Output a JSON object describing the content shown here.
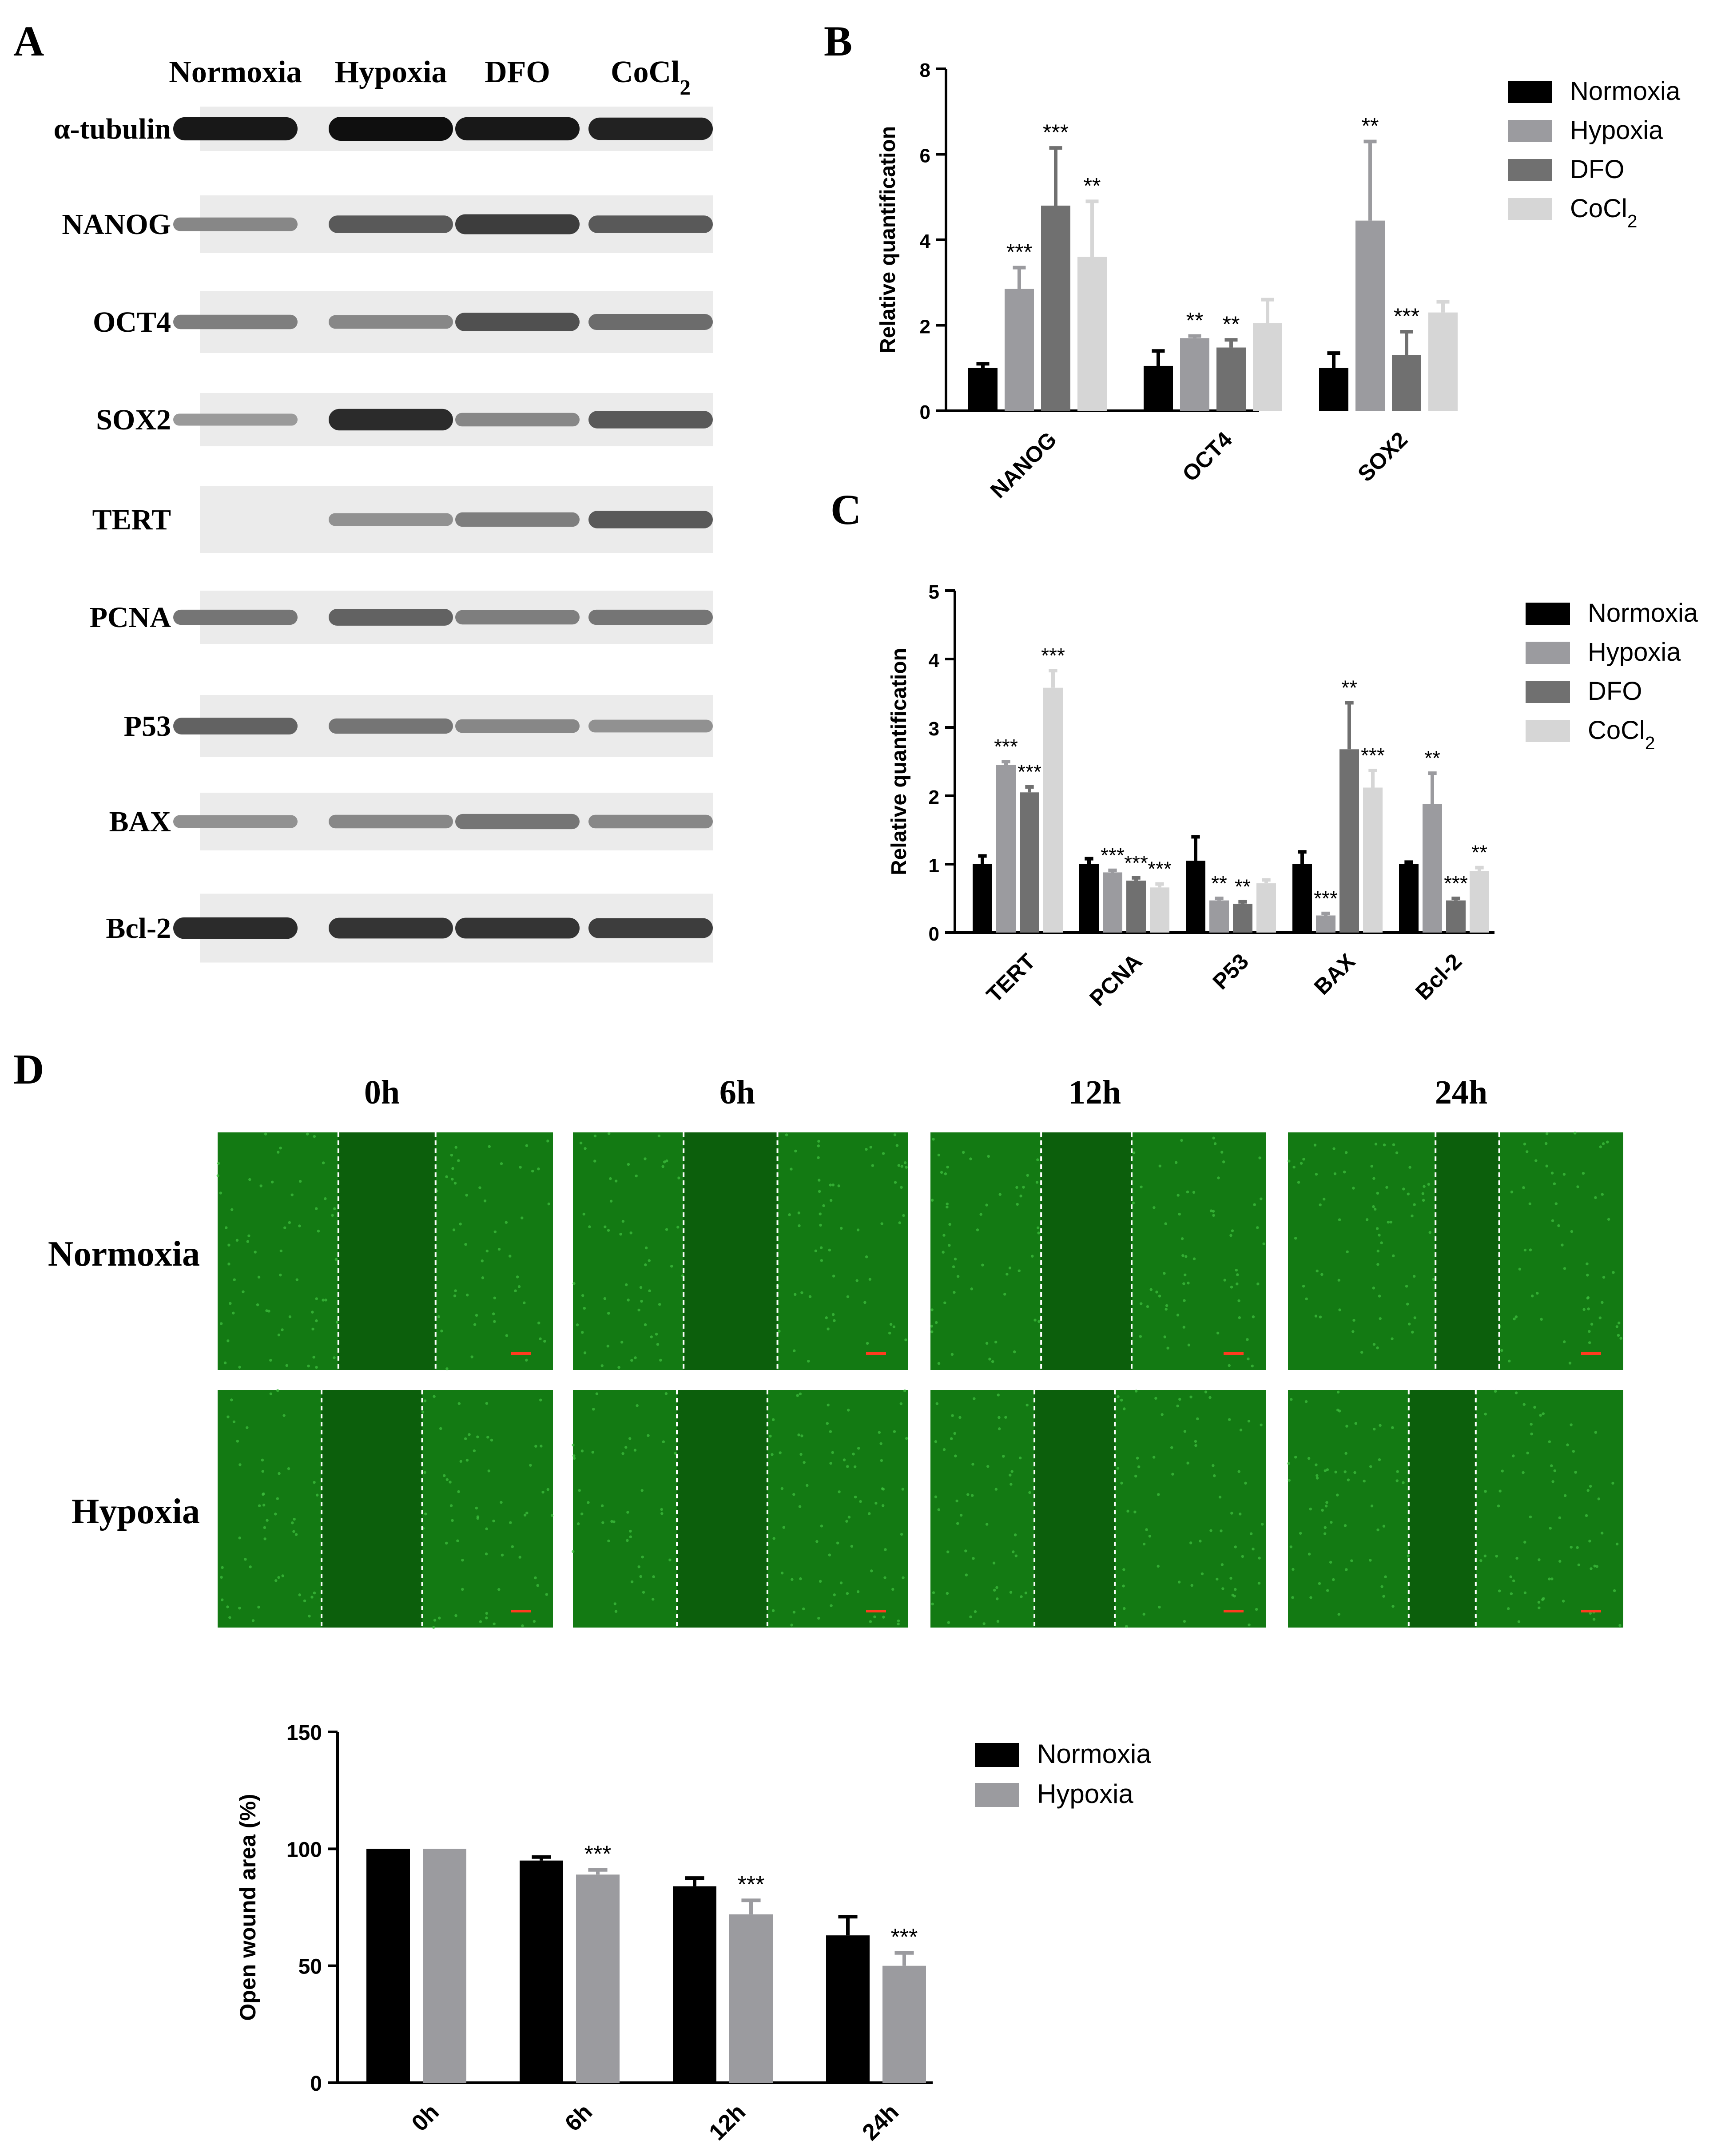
{
  "panels": {
    "A": {
      "letter": "A",
      "lanes": [
        "Normoxia",
        "Hypoxia",
        "DFO",
        "CoCl2"
      ],
      "rows": [
        {
          "label": "α-tubulin",
          "bands": [
            0.95,
            1.0,
            0.95,
            0.9
          ]
        },
        {
          "label": "NANOG",
          "bands": [
            0.35,
            0.6,
            0.75,
            0.6
          ]
        },
        {
          "label": "OCT4",
          "bands": [
            0.4,
            0.35,
            0.65,
            0.5
          ]
        },
        {
          "label": "SOX2",
          "bands": [
            0.25,
            0.85,
            0.35,
            0.6
          ]
        },
        {
          "label": "TERT",
          "bands": [
            0.0,
            0.3,
            0.4,
            0.6
          ]
        },
        {
          "label": "PCNA",
          "bands": [
            0.45,
            0.55,
            0.4,
            0.45
          ]
        },
        {
          "label": "P53",
          "bands": [
            0.55,
            0.45,
            0.35,
            0.3
          ]
        },
        {
          "label": "BAX",
          "bands": [
            0.3,
            0.35,
            0.45,
            0.35
          ]
        },
        {
          "label": "Bcl-2",
          "bands": [
            0.85,
            0.8,
            0.8,
            0.75
          ]
        }
      ]
    },
    "B": {
      "letter": "B"
    },
    "C": {
      "letter": "C"
    },
    "D": {
      "letter": "D",
      "timepoints": [
        "0h",
        "6h",
        "12h",
        "24h"
      ],
      "rows": [
        "Normoxia",
        "Hypoxia"
      ]
    }
  },
  "colors": {
    "normoxia": "#000000",
    "hypoxia": "#9b9b9f",
    "dfo": "#707070",
    "cocl2": "#d6d6d6",
    "microscopy_green": "#0f6f0f"
  },
  "chart_data": [
    {
      "id": "B",
      "type": "bar",
      "title": "",
      "ylabel": "Relative quantification",
      "ylim": [
        0,
        8
      ],
      "yticks": [
        0,
        2,
        4,
        6,
        8
      ],
      "categories": [
        "NANOG",
        "OCT4",
        "SOX2"
      ],
      "legend_placement": "top-right",
      "series": [
        {
          "name": "Normoxia",
          "values": [
            1.0,
            1.05,
            1.0
          ],
          "errors": [
            0.1,
            0.35,
            0.35
          ],
          "sig": [
            "",
            "",
            ""
          ]
        },
        {
          "name": "Hypoxia",
          "values": [
            2.85,
            1.7,
            4.45
          ],
          "errors": [
            0.5,
            0.05,
            1.85
          ],
          "sig": [
            "***",
            "**",
            "**"
          ]
        },
        {
          "name": "DFO",
          "values": [
            4.8,
            1.48,
            1.3
          ],
          "errors": [
            1.35,
            0.18,
            0.55
          ],
          "sig": [
            "***",
            "**",
            "***"
          ]
        },
        {
          "name": "CoCl2",
          "values": [
            3.6,
            2.05,
            2.3
          ],
          "errors": [
            1.3,
            0.55,
            0.25
          ],
          "sig": [
            "**",
            "",
            ""
          ]
        }
      ]
    },
    {
      "id": "C",
      "type": "bar",
      "title": "",
      "ylabel": "Relative quantification",
      "ylim": [
        0,
        5
      ],
      "yticks": [
        0,
        1,
        2,
        3,
        4,
        5
      ],
      "categories": [
        "TERT",
        "PCNA",
        "P53",
        "BAX",
        "Bcl-2"
      ],
      "legend_placement": "top-right",
      "series": [
        {
          "name": "Normoxia",
          "values": [
            1.0,
            1.0,
            1.05,
            1.0,
            1.0
          ],
          "errors": [
            0.12,
            0.08,
            0.35,
            0.18,
            0.03
          ],
          "sig": [
            "",
            "",
            "",
            "",
            ""
          ]
        },
        {
          "name": "Hypoxia",
          "values": [
            2.45,
            0.88,
            0.47,
            0.25,
            1.88
          ],
          "errors": [
            0.05,
            0.03,
            0.03,
            0.03,
            0.45
          ],
          "sig": [
            "***",
            "***",
            "**",
            "***",
            "**"
          ]
        },
        {
          "name": "DFO",
          "values": [
            2.05,
            0.76,
            0.42,
            2.68,
            0.47
          ],
          "errors": [
            0.08,
            0.04,
            0.03,
            0.68,
            0.03
          ],
          "sig": [
            "***",
            "***",
            "**",
            "**",
            "***"
          ]
        },
        {
          "name": "CoCl2",
          "values": [
            3.58,
            0.66,
            0.72,
            2.12,
            0.9
          ],
          "errors": [
            0.25,
            0.05,
            0.05,
            0.25,
            0.05
          ],
          "sig": [
            "***",
            "***",
            "",
            "***",
            "**"
          ]
        }
      ]
    },
    {
      "id": "D",
      "type": "bar",
      "title": "",
      "ylabel": "Open wound area (%)",
      "ylim": [
        0,
        150
      ],
      "yticks": [
        0,
        50,
        100,
        150
      ],
      "categories": [
        "0h",
        "6h",
        "12h",
        "24h"
      ],
      "legend_placement": "top-right",
      "series": [
        {
          "name": "Normoxia",
          "values": [
            100,
            95,
            84,
            63
          ],
          "errors": [
            0,
            1.5,
            3.5,
            8
          ],
          "sig": [
            "",
            "",
            "",
            ""
          ]
        },
        {
          "name": "Hypoxia",
          "values": [
            100,
            89,
            72,
            50
          ],
          "errors": [
            0,
            2,
            6,
            5.5
          ],
          "sig": [
            "",
            "***",
            "***",
            "***"
          ]
        }
      ]
    }
  ]
}
